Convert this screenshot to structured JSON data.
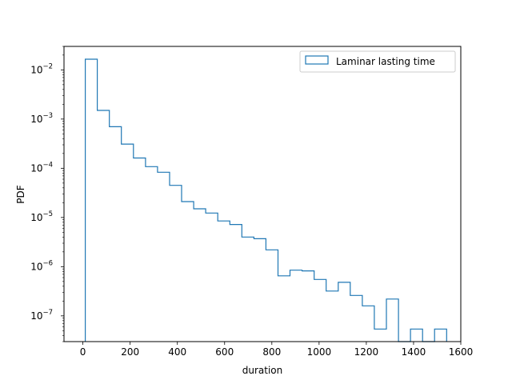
{
  "chart_data": {
    "type": "histogram",
    "xlabel": "duration",
    "ylabel": "PDF",
    "xlim": [
      -80,
      1600
    ],
    "ylim": [
      3e-08,
      0.03
    ],
    "yscale": "log",
    "grid": false,
    "legend_position": "top-right",
    "color": "#1f77b4",
    "series": [
      {
        "name": "Laminar lasting time",
        "style": "step",
        "bin_edges": [
          10,
          61,
          112,
          163,
          214,
          265,
          316,
          367,
          418,
          469,
          520,
          571,
          622,
          673,
          724,
          775,
          826,
          877,
          928,
          979,
          1030,
          1081,
          1132,
          1183,
          1234,
          1285,
          1336,
          1387,
          1438,
          1489,
          1540
        ],
        "values": [
          0.0165,
          0.0015,
          0.0007,
          0.00031,
          0.000162,
          0.000108,
          8.3e-05,
          4.5e-05,
          2.1e-05,
          1.5e-05,
          1.23e-05,
          8.5e-06,
          7.2e-06,
          4e-06,
          3.7e-06,
          2.2e-06,
          6.5e-07,
          8.5e-07,
          8.2e-07,
          5.5e-07,
          3.2e-07,
          4.8e-07,
          2.6e-07,
          1.6e-07,
          5.4e-08,
          2.2e-07,
          0,
          5.4e-08,
          0,
          5.4e-08
        ]
      }
    ],
    "x_ticks": [
      {
        "value": 0,
        "label": "0"
      },
      {
        "value": 200,
        "label": "200"
      },
      {
        "value": 400,
        "label": "400"
      },
      {
        "value": 600,
        "label": "600"
      },
      {
        "value": 800,
        "label": "800"
      },
      {
        "value": 1000,
        "label": "1000"
      },
      {
        "value": 1200,
        "label": "1200"
      },
      {
        "value": 1400,
        "label": "1400"
      },
      {
        "value": 1600,
        "label": "1600"
      }
    ],
    "y_ticks": [
      {
        "exp": -7,
        "base": "10",
        "sup": "−7"
      },
      {
        "exp": -6,
        "base": "10",
        "sup": "−6"
      },
      {
        "exp": -5,
        "base": "10",
        "sup": "−5"
      },
      {
        "exp": -4,
        "base": "10",
        "sup": "−4"
      },
      {
        "exp": -3,
        "base": "10",
        "sup": "−3"
      },
      {
        "exp": -2,
        "base": "10",
        "sup": "−2"
      }
    ]
  }
}
